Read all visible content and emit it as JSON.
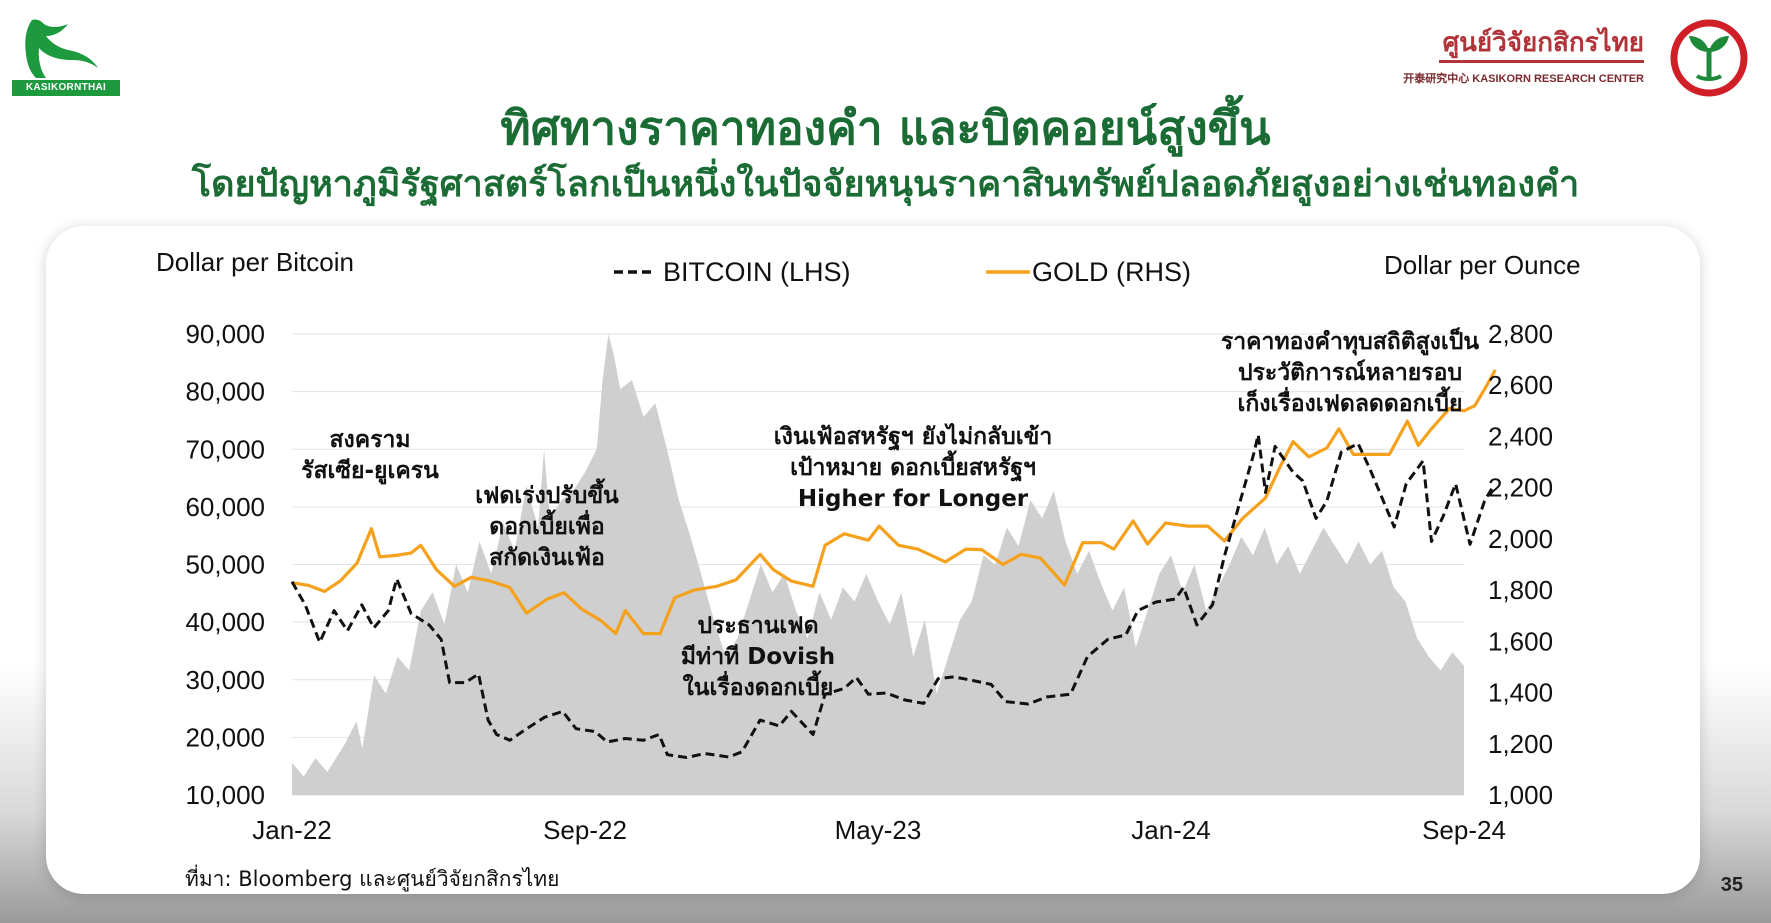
{
  "header": {
    "logo_left_text": "KASIKORNTHAI",
    "logo_right_name": "ศูนย์วิจัยกสิกรไทย",
    "logo_right_sub": "开泰研究中心 KASIKORN RESEARCH CENTER",
    "title_line1": "ทิศทางราคาทองคำ และบิตคอยน์สูงขึ้น",
    "title_line2": "โดยปัญหาภูมิรัฐศาสตร์โลกเป็นหนึ่งในปัจจัยหนุนราคาสินทรัพย์ปลอดภัยสูงอย่างเช่นทองคำ"
  },
  "footer": {
    "source": "ที่มา: Bloomberg และศูนย์วิจัยกสิกรไทย",
    "page_number": "35"
  },
  "colors": {
    "gold": "#F5A11C",
    "bitcoin": "#111111",
    "area": "#cfcfcf",
    "title_green": "#1b6b35"
  },
  "chart_data": {
    "type": "line",
    "left_axis_label": "Dollar per Bitcoin",
    "right_axis_label": "Dollar per Ounce",
    "legend": {
      "bitcoin": "BITCOIN (LHS)",
      "gold": "GOLD (RHS)"
    },
    "left_ylim": [
      10000,
      90000
    ],
    "left_ticks": [
      "90,000",
      "80,000",
      "70,000",
      "60,000",
      "50,000",
      "40,000",
      "30,000",
      "20,000",
      "10,000"
    ],
    "right_ylim": [
      1000,
      2800
    ],
    "right_ticks": [
      "2,800",
      "2,600",
      "2,400",
      "2,200",
      "2,000",
      "1,800",
      "1,600",
      "1,400",
      "1,200",
      "1,000"
    ],
    "x_ticks": [
      "Jan-22",
      "Sep-22",
      "May-23",
      "Jan-24",
      "Sep-24"
    ],
    "x_range": [
      "2022-01",
      "2024-09"
    ],
    "grid": true,
    "series": [
      {
        "name": "BITCOIN (LHS)",
        "axis": "left",
        "style": "dashed",
        "points": [
          [
            "2022-01-01",
            47000
          ],
          [
            "2022-01-12",
            43000
          ],
          [
            "2022-01-24",
            36500
          ],
          [
            "2022-02-05",
            42000
          ],
          [
            "2022-02-16",
            38500
          ],
          [
            "2022-02-28",
            43000
          ],
          [
            "2022-03-10",
            39000
          ],
          [
            "2022-03-22",
            42000
          ],
          [
            "2022-03-29",
            47500
          ],
          [
            "2022-04-10",
            41500
          ],
          [
            "2022-04-25",
            39500
          ],
          [
            "2022-05-05",
            37000
          ],
          [
            "2022-05-12",
            29500
          ],
          [
            "2022-05-25",
            29500
          ],
          [
            "2022-06-05",
            31000
          ],
          [
            "2022-06-13",
            23000
          ],
          [
            "2022-06-20",
            20500
          ],
          [
            "2022-07-01",
            19500
          ],
          [
            "2022-07-15",
            21500
          ],
          [
            "2022-07-30",
            23500
          ],
          [
            "2022-08-14",
            24500
          ],
          [
            "2022-08-25",
            21500
          ],
          [
            "2022-09-10",
            21000
          ],
          [
            "2022-09-20",
            19200
          ],
          [
            "2022-10-05",
            19800
          ],
          [
            "2022-10-20",
            19500
          ],
          [
            "2022-11-02",
            20500
          ],
          [
            "2022-11-09",
            17000
          ],
          [
            "2022-11-25",
            16500
          ],
          [
            "2022-12-10",
            17200
          ],
          [
            "2022-12-30",
            16600
          ],
          [
            "2023-01-10",
            17500
          ],
          [
            "2023-01-25",
            23000
          ],
          [
            "2023-02-10",
            22000
          ],
          [
            "2023-02-20",
            24500
          ],
          [
            "2023-03-10",
            20500
          ],
          [
            "2023-03-20",
            27500
          ],
          [
            "2023-04-05",
            28500
          ],
          [
            "2023-04-15",
            30400
          ],
          [
            "2023-04-25",
            27500
          ],
          [
            "2023-05-10",
            27700
          ],
          [
            "2023-05-25",
            26500
          ],
          [
            "2023-06-10",
            25900
          ],
          [
            "2023-06-22",
            30200
          ],
          [
            "2023-07-05",
            30500
          ],
          [
            "2023-07-20",
            29900
          ],
          [
            "2023-08-05",
            29200
          ],
          [
            "2023-08-17",
            26200
          ],
          [
            "2023-09-05",
            25800
          ],
          [
            "2023-09-20",
            27000
          ],
          [
            "2023-10-10",
            27500
          ],
          [
            "2023-10-24",
            34000
          ],
          [
            "2023-11-10",
            37000
          ],
          [
            "2023-11-25",
            37800
          ],
          [
            "2023-12-05",
            42000
          ],
          [
            "2023-12-20",
            43500
          ],
          [
            "2024-01-05",
            44000
          ],
          [
            "2024-01-12",
            46000
          ],
          [
            "2024-01-23",
            39500
          ],
          [
            "2024-02-05",
            43000
          ],
          [
            "2024-02-15",
            51500
          ],
          [
            "2024-02-28",
            61000
          ],
          [
            "2024-03-10",
            69000
          ],
          [
            "2024-03-14",
            72500
          ],
          [
            "2024-03-20",
            62500
          ],
          [
            "2024-03-28",
            70500
          ],
          [
            "2024-04-12",
            66000
          ],
          [
            "2024-04-20",
            64500
          ],
          [
            "2024-05-01",
            58000
          ],
          [
            "2024-05-10",
            61000
          ],
          [
            "2024-05-22",
            69500
          ],
          [
            "2024-06-05",
            71000
          ],
          [
            "2024-06-15",
            66500
          ],
          [
            "2024-06-25",
            61500
          ],
          [
            "2024-07-05",
            56500
          ],
          [
            "2024-07-15",
            64000
          ],
          [
            "2024-07-29",
            68000
          ],
          [
            "2024-08-05",
            54000
          ],
          [
            "2024-08-15",
            58500
          ],
          [
            "2024-08-25",
            64000
          ],
          [
            "2024-09-06",
            53500
          ],
          [
            "2024-09-18",
            61000
          ],
          [
            "2024-09-25",
            63500
          ]
        ]
      },
      {
        "name": "GOLD (RHS)",
        "axis": "right",
        "style": "solid",
        "points": [
          [
            "2022-01-01",
            1829
          ],
          [
            "2022-01-15",
            1818
          ],
          [
            "2022-01-28",
            1795
          ],
          [
            "2022-02-10",
            1835
          ],
          [
            "2022-02-24",
            1905
          ],
          [
            "2022-03-08",
            2040
          ],
          [
            "2022-03-15",
            1930
          ],
          [
            "2022-03-28",
            1935
          ],
          [
            "2022-04-10",
            1945
          ],
          [
            "2022-04-18",
            1975
          ],
          [
            "2022-05-01",
            1880
          ],
          [
            "2022-05-16",
            1815
          ],
          [
            "2022-05-30",
            1850
          ],
          [
            "2022-06-15",
            1835
          ],
          [
            "2022-07-01",
            1810
          ],
          [
            "2022-07-15",
            1710
          ],
          [
            "2022-08-01",
            1765
          ],
          [
            "2022-08-15",
            1790
          ],
          [
            "2022-08-30",
            1725
          ],
          [
            "2022-09-15",
            1680
          ],
          [
            "2022-09-27",
            1630
          ],
          [
            "2022-10-05",
            1720
          ],
          [
            "2022-10-20",
            1630
          ],
          [
            "2022-11-03",
            1630
          ],
          [
            "2022-11-15",
            1770
          ],
          [
            "2022-12-01",
            1800
          ],
          [
            "2022-12-20",
            1815
          ],
          [
            "2023-01-05",
            1840
          ],
          [
            "2023-01-25",
            1940
          ],
          [
            "2023-02-05",
            1880
          ],
          [
            "2023-02-20",
            1835
          ],
          [
            "2023-03-10",
            1815
          ],
          [
            "2023-03-20",
            1975
          ],
          [
            "2023-04-05",
            2020
          ],
          [
            "2023-04-25",
            1995
          ],
          [
            "2023-05-04",
            2050
          ],
          [
            "2023-05-20",
            1975
          ],
          [
            "2023-06-05",
            1960
          ],
          [
            "2023-06-28",
            1910
          ],
          [
            "2023-07-15",
            1960
          ],
          [
            "2023-07-28",
            1958
          ],
          [
            "2023-08-15",
            1900
          ],
          [
            "2023-08-30",
            1940
          ],
          [
            "2023-09-15",
            1925
          ],
          [
            "2023-10-05",
            1820
          ],
          [
            "2023-10-20",
            1985
          ],
          [
            "2023-11-05",
            1985
          ],
          [
            "2023-11-15",
            1960
          ],
          [
            "2023-12-01",
            2070
          ],
          [
            "2023-12-13",
            1980
          ],
          [
            "2023-12-28",
            2062
          ],
          [
            "2024-01-15",
            2050
          ],
          [
            "2024-02-01",
            2050
          ],
          [
            "2024-02-15",
            1992
          ],
          [
            "2024-03-01",
            2080
          ],
          [
            "2024-03-20",
            2160
          ],
          [
            "2024-04-01",
            2280
          ],
          [
            "2024-04-12",
            2380
          ],
          [
            "2024-04-25",
            2320
          ],
          [
            "2024-05-10",
            2355
          ],
          [
            "2024-05-20",
            2430
          ],
          [
            "2024-06-01",
            2330
          ],
          [
            "2024-06-15",
            2330
          ],
          [
            "2024-07-01",
            2330
          ],
          [
            "2024-07-16",
            2460
          ],
          [
            "2024-07-25",
            2365
          ],
          [
            "2024-08-05",
            2430
          ],
          [
            "2024-08-20",
            2510
          ],
          [
            "2024-09-01",
            2500
          ],
          [
            "2024-09-10",
            2520
          ],
          [
            "2024-09-20",
            2600
          ],
          [
            "2024-09-27",
            2660
          ]
        ]
      }
    ],
    "annotations": [
      {
        "lines": [
          "สงคราม",
          "รัสเซีย-ยูเครน"
        ]
      },
      {
        "lines": [
          "เฟดเร่งปรับขึ้น",
          "ดอกเบี้ยเพื่อ",
          "สกัดเงินเฟ้อ"
        ]
      },
      {
        "lines": [
          "ประธานเฟด",
          "มีท่าที Dovish",
          "ในเรื่องดอกเบี้ย"
        ]
      },
      {
        "lines": [
          "เงินเฟ้อสหรัฐฯ ยังไม่กลับเข้า",
          "เป้าหมาย ดอกเบี้ยสหรัฐฯ",
          "Higher for Longer"
        ]
      },
      {
        "lines": [
          "ราคาทองคำทุบสถิติสูงเป็น",
          "ประวัติการณ์หลายรอบ",
          "เก็งเรื่องเฟดลดดอกเบี้ย"
        ]
      }
    ]
  }
}
